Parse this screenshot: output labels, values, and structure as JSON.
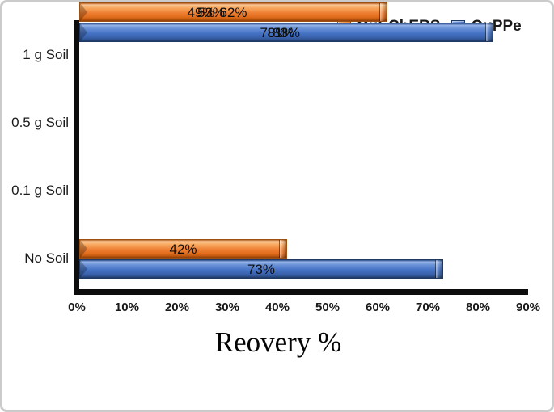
{
  "chart_data": {
    "type": "bar",
    "orientation": "horizontal",
    "xlabel": "Reovery %",
    "categories": [
      "1 g Soil",
      "0.5 g Soil",
      "0.1 g Soil",
      "No Soil"
    ],
    "series": [
      {
        "name": "QuEChERS",
        "color": "#ED7D31",
        "values": [
          42,
          49,
          53,
          62
        ]
      },
      {
        "name": "QuPPe",
        "color": "#4472C4",
        "values": [
          73,
          78,
          81,
          83
        ]
      }
    ],
    "value_suffix": "%",
    "xlim": [
      0,
      90
    ],
    "tick_labels": [
      "0%",
      "10%",
      "20%",
      "30%",
      "40%",
      "50%",
      "60%",
      "70%",
      "80%",
      "90%"
    ],
    "grid": false,
    "legend_position": "top-right",
    "axis_color": "#0d0d0d",
    "label_color": "#1a1a1a"
  }
}
